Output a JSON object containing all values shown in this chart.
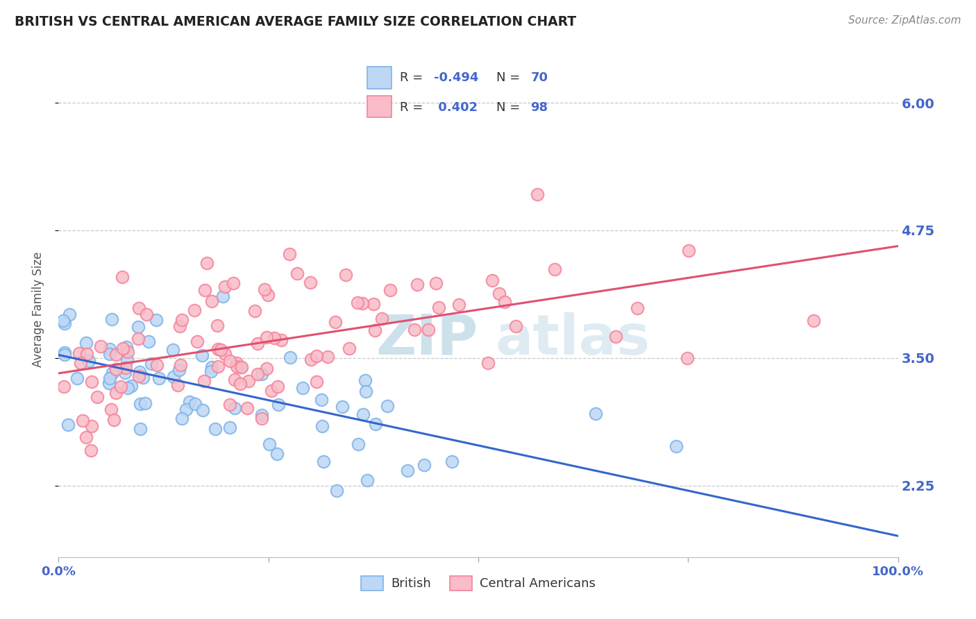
{
  "title": "BRITISH VS CENTRAL AMERICAN AVERAGE FAMILY SIZE CORRELATION CHART",
  "source": "Source: ZipAtlas.com",
  "ylabel": "Average Family Size",
  "xlim": [
    0.0,
    1.0
  ],
  "ylim": [
    1.55,
    6.4
  ],
  "yticks": [
    2.25,
    3.5,
    4.75,
    6.0
  ],
  "blue_color": "#7EB3E8",
  "pink_color": "#F4839A",
  "blue_face": "#BDD7F5",
  "pink_face": "#F9BCC8",
  "line_blue": "#3366CC",
  "line_pink": "#E05070",
  "title_color": "#222222",
  "axis_color": "#4466CC",
  "grid_color": "#BBBBBB",
  "watermark_color": "#C5DCE8",
  "legend_r1": "-0.494",
  "legend_n1": "70",
  "legend_r2": "0.402",
  "legend_n2": "98",
  "british_intercept": 3.55,
  "british_slope": -1.85,
  "central_intercept": 3.42,
  "central_slope": 1.05
}
